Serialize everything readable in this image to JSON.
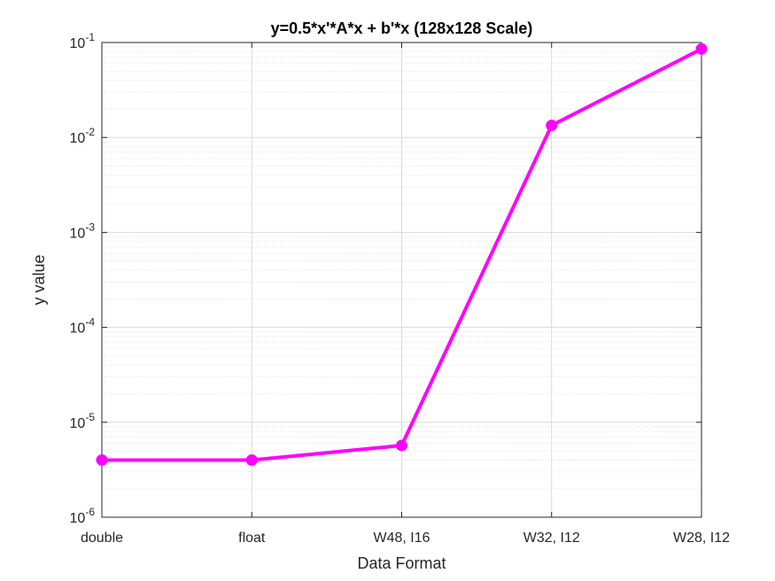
{
  "chart_data": {
    "type": "line",
    "title": "y=0.5*x'*A*x + b'*x (128x128 Scale)",
    "xlabel": "Data Format",
    "ylabel": "y value",
    "categories": [
      "double",
      "float",
      "W48, I16",
      "W32, I12",
      "W28, I12"
    ],
    "series": [
      {
        "values": [
          4e-06,
          4e-06,
          5.7e-06,
          0.0134,
          0.0855
        ]
      }
    ],
    "y_scale": "log",
    "ylim": [
      1e-06,
      0.1
    ],
    "y_ticks": [
      {
        "value": 1e-06,
        "base": "10",
        "exp": "-6"
      },
      {
        "value": 1e-05,
        "base": "10",
        "exp": "-5"
      },
      {
        "value": 0.0001,
        "base": "10",
        "exp": "-4"
      },
      {
        "value": 0.001,
        "base": "10",
        "exp": "-3"
      },
      {
        "value": 0.01,
        "base": "10",
        "exp": "-2"
      },
      {
        "value": 0.1,
        "base": "10",
        "exp": "-1"
      }
    ],
    "grid": true,
    "minor_grid": true,
    "line_color": "#ff00ff",
    "marker": "circle"
  }
}
